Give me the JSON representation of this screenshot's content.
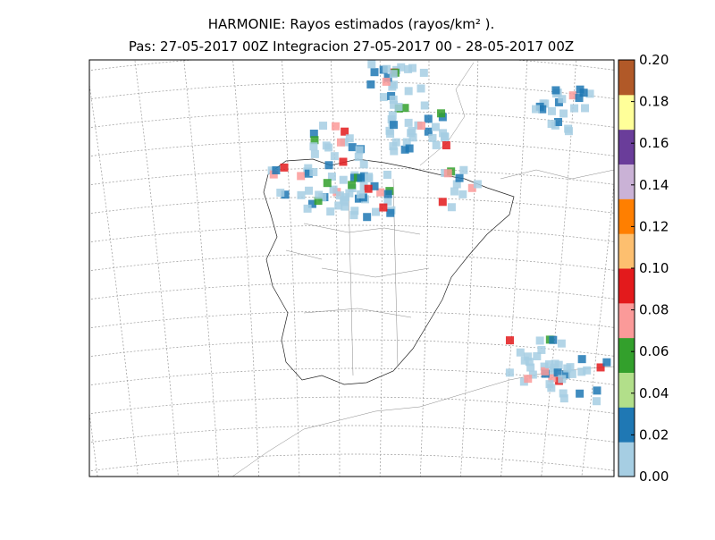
{
  "map": {
    "title": "HARMONIE: Rayos estimados  (rayos/km² ).",
    "subtitle": "Pas: 27-05-2017 00Z Integracion 27-05-2017 00 - 28-05-2017 00Z",
    "colorbar": {
      "range": [
        0,
        0.2
      ],
      "ticks": [
        {
          "value": 0,
          "label": "0.00"
        },
        {
          "value": 0.02,
          "label": "0.02"
        },
        {
          "value": 0.04,
          "label": "0.04"
        },
        {
          "value": 0.06,
          "label": "0.06"
        },
        {
          "value": 0.08,
          "label": "0.08"
        },
        {
          "value": 0.1,
          "label": "0.10"
        },
        {
          "value": 0.12,
          "label": "0.12"
        },
        {
          "value": 0.14,
          "label": "0.14"
        },
        {
          "value": 0.16,
          "label": "0.16"
        },
        {
          "value": 0.18,
          "label": "0.18"
        },
        {
          "value": 0.2,
          "label": "0.20"
        }
      ],
      "colors": [
        "#a6cee3",
        "#1f78b4",
        "#b2df8a",
        "#33a02c",
        "#fb9a99",
        "#e31a1c",
        "#fdbf6f",
        "#ff7f00",
        "#cab2d6",
        "#6a3d9a",
        "#ffff99",
        "#b15928"
      ]
    }
  }
}
